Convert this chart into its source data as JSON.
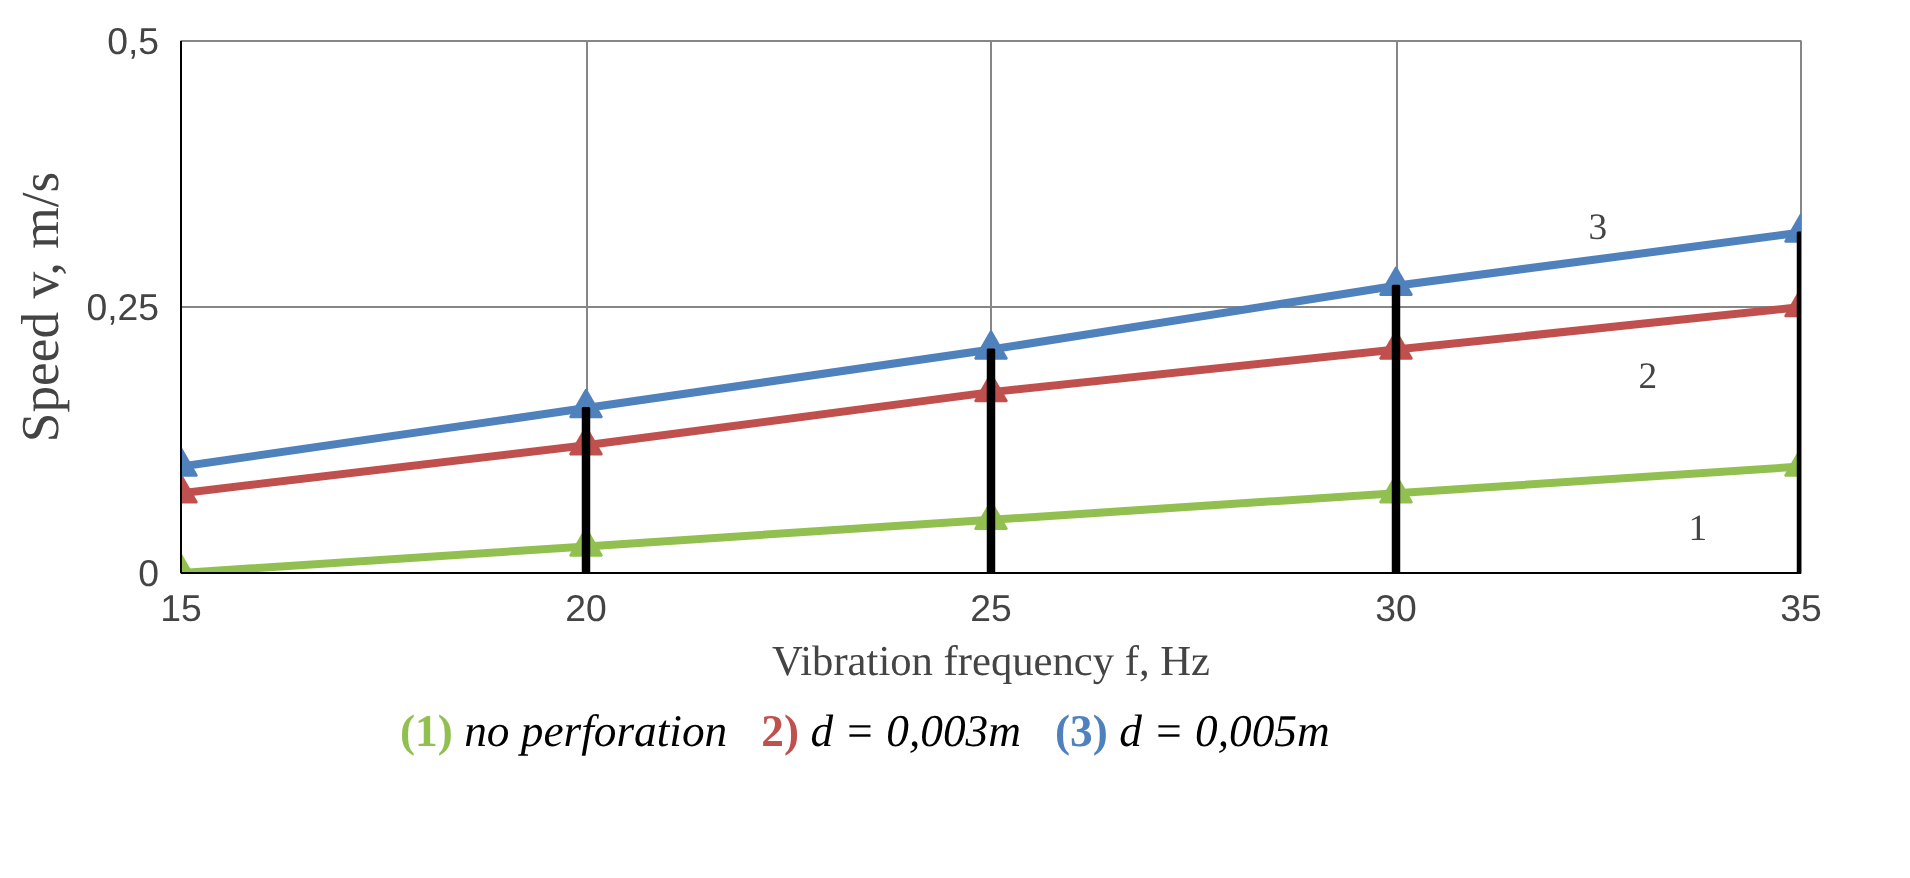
{
  "chart_data": {
    "type": "line",
    "xlabel": "Vibration frequency f, Hz",
    "ylabel": "Speed v, m/s",
    "x": [
      15,
      20,
      25,
      30,
      35
    ],
    "series": [
      {
        "type": "bar",
        "color": "#000000",
        "values": [
          null,
          0.155,
          0.21,
          0.27,
          0.32
        ]
      },
      {
        "name": "(1) no perforation",
        "color": "#92c050",
        "values": [
          0,
          0.025,
          0.05,
          0.075,
          0.1
        ]
      },
      {
        "name": "2) d = 0,003m",
        "color": "#c0504d",
        "values": [
          0.075,
          0.12,
          0.17,
          0.21,
          0.25
        ]
      },
      {
        "name": "(3) d = 0,005m",
        "color": "#4f81bd",
        "values": [
          0.1,
          0.155,
          0.21,
          0.27,
          0.32
        ]
      }
    ],
    "xlim": [
      15,
      35
    ],
    "ylim": [
      0,
      0.5
    ],
    "xticks": [
      15,
      20,
      25,
      30,
      35
    ],
    "yticks": [
      0,
      {
        "value": 0.25,
        "label": "0,25"
      },
      {
        "value": 0.5,
        "label": "0,5"
      }
    ],
    "annotations": [
      "1",
      "2",
      "3"
    ],
    "grid": true,
    "legend": "bottom",
    "marker": "triangle",
    "line_style": "solid"
  }
}
